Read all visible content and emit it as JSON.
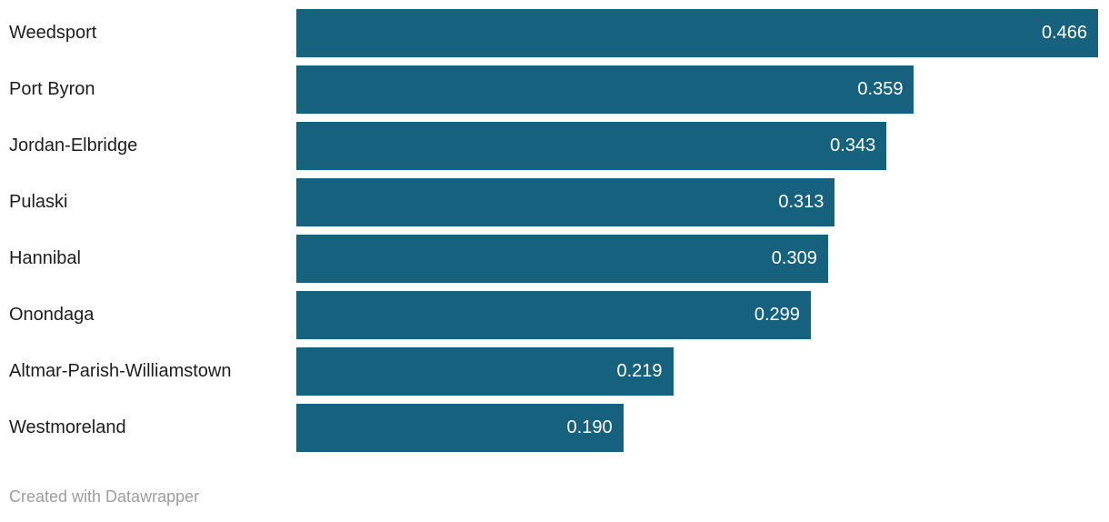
{
  "chart_data": {
    "type": "bar",
    "orientation": "horizontal",
    "title": "",
    "xlabel": "",
    "ylabel": "",
    "categories": [
      "Weedsport",
      "Port Byron",
      "Jordan-Elbridge",
      "Pulaski",
      "Hannibal",
      "Onondaga",
      "Altmar-Parish-Williamstown",
      "Westmoreland"
    ],
    "values": [
      0.466,
      0.359,
      0.343,
      0.313,
      0.309,
      0.299,
      0.219,
      0.19
    ],
    "value_labels": [
      "0.466",
      "0.359",
      "0.343",
      "0.313",
      "0.309",
      "0.299",
      "0.219",
      "0.190"
    ],
    "xlim": [
      0,
      0.466
    ],
    "grid": false,
    "legend": false,
    "bar_color": "#16627e",
    "value_label_color": "#ffffff",
    "category_label_color": "#1d1d1d"
  },
  "footer": {
    "credit": "Created with Datawrapper",
    "credit_color": "#9d9d9d"
  }
}
